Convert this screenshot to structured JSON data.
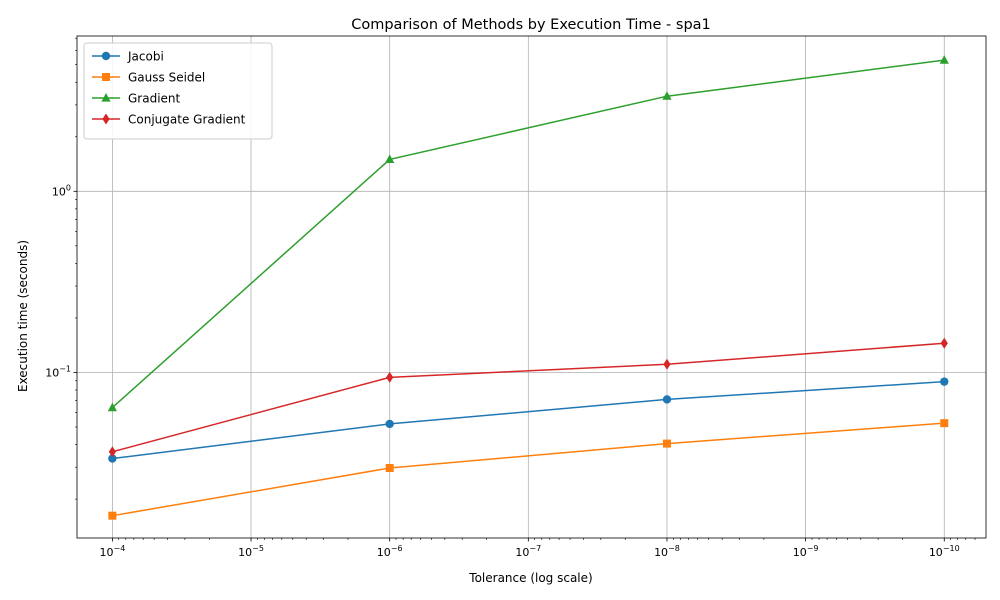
{
  "chart_data": {
    "type": "line",
    "title": "Comparison of Methods by Execution Time - spa1",
    "xlabel": "Tolerance (log scale)",
    "ylabel": "Execution time (seconds)",
    "x_scale": "log",
    "x_inverted": true,
    "y_scale": "log",
    "grid": true,
    "legend_position": "top-left",
    "x": [
      0.0001,
      1e-06,
      1e-08,
      1e-10
    ],
    "xlim": [
      0.00018,
      5e-11
    ],
    "ylim": [
      0.0122,
      7.2
    ],
    "x_ticks": [
      {
        "value": 0.0001,
        "base": "10",
        "exp": "−4"
      },
      {
        "value": 1e-05,
        "base": "10",
        "exp": "−5"
      },
      {
        "value": 1e-06,
        "base": "10",
        "exp": "−6"
      },
      {
        "value": 1e-07,
        "base": "10",
        "exp": "−7"
      },
      {
        "value": 1e-08,
        "base": "10",
        "exp": "−8"
      },
      {
        "value": 1e-09,
        "base": "10",
        "exp": "−9"
      },
      {
        "value": 1e-10,
        "base": "10",
        "exp": "−10"
      }
    ],
    "y_ticks": [
      {
        "value": 0.1,
        "base": "10",
        "exp": "−1"
      },
      {
        "value": 1,
        "base": "10",
        "exp": "0"
      }
    ],
    "series": [
      {
        "name": "Jacobi",
        "color": "#1f77b4",
        "marker": "circle",
        "values": [
          0.0335,
          0.052,
          0.071,
          0.089
        ]
      },
      {
        "name": "Gauss Seidel",
        "color": "#ff7f0e",
        "marker": "square",
        "values": [
          0.0162,
          0.0297,
          0.0405,
          0.0525
        ]
      },
      {
        "name": "Gradient",
        "color": "#2ca02c",
        "marker": "triangle",
        "values": [
          0.064,
          1.5,
          3.35,
          5.3
        ]
      },
      {
        "name": "Conjugate Gradient",
        "color": "#d62728",
        "marker": "diamond",
        "values": [
          0.0365,
          0.094,
          0.111,
          0.145
        ]
      }
    ]
  }
}
